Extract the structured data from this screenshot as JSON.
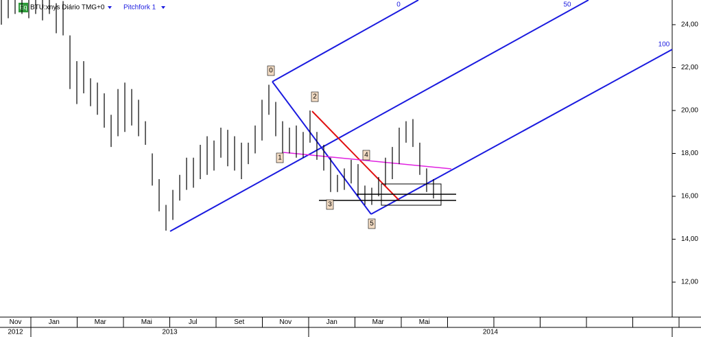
{
  "chart_data": {
    "type": "ohlc",
    "badge": "Eq",
    "title": "BTU:xnys Diário TMG+0",
    "tool": "Pitchfork 1",
    "high": [
      25.2,
      25.2,
      25.2,
      25.2,
      25.2,
      25.2,
      25.2,
      25.2,
      25.0,
      25.1,
      23.5,
      22.3,
      22.3,
      21.5,
      21.3,
      20.8,
      19.8,
      21.0,
      21.3,
      21.0,
      20.5,
      19.5,
      18.0,
      16.8,
      15.6,
      16.3,
      17.0,
      17.8,
      17.8,
      18.4,
      18.8,
      18.6,
      19.2,
      19.1,
      18.8,
      18.5,
      18.5,
      19.3,
      20.5,
      21.2,
      20.4,
      19.5,
      19.2,
      19.3,
      19.0,
      20.0,
      19.0,
      18.4,
      17.8,
      17.0,
      17.3,
      17.7,
      17.5,
      16.5,
      16.4,
      16.9,
      17.8,
      18.3,
      19.2,
      19.5,
      19.6,
      18.5,
      17.3,
      16.8
    ],
    "low": [
      24.0,
      24.3,
      24.5,
      24.5,
      24.3,
      24.5,
      24.2,
      24.5,
      23.6,
      23.5,
      21.0,
      20.3,
      20.8,
      20.2,
      19.8,
      19.2,
      18.3,
      18.8,
      19.0,
      19.3,
      18.8,
      18.4,
      16.5,
      15.3,
      14.4,
      14.9,
      15.8,
      16.3,
      16.4,
      16.8,
      17.0,
      17.2,
      17.8,
      17.4,
      17.2,
      16.8,
      17.5,
      18.0,
      18.6,
      19.8,
      18.8,
      18.0,
      18.0,
      17.8,
      17.8,
      18.5,
      17.7,
      17.2,
      16.2,
      16.2,
      16.3,
      16.6,
      16.0,
      15.6,
      15.6,
      16.0,
      16.5,
      16.8,
      17.5,
      18.5,
      18.3,
      17.0,
      16.2,
      15.9
    ],
    "color": "#000000",
    "ylim": [
      10.37,
      25.15
    ],
    "yticks": [
      {
        "value": 12,
        "label": "12,00"
      },
      {
        "value": 14,
        "label": "14,00"
      },
      {
        "value": 16,
        "label": "16,00"
      },
      {
        "value": 18,
        "label": "18,00"
      },
      {
        "value": 20,
        "label": "20,00"
      },
      {
        "value": 22,
        "label": "22,00"
      },
      {
        "value": 24,
        "label": "24,00"
      }
    ],
    "months": [
      "Nov",
      "Jan",
      "Mar",
      "Mai",
      "Jul",
      "Set",
      "Nov",
      "Jan",
      "Mar",
      "Mai"
    ],
    "years": [
      "2012",
      "2013",
      "2014"
    ],
    "pitchfork_levels": [
      "0",
      "50",
      "100"
    ],
    "point_labels": [
      "0",
      "1",
      "2",
      "3",
      "4",
      "5"
    ]
  }
}
